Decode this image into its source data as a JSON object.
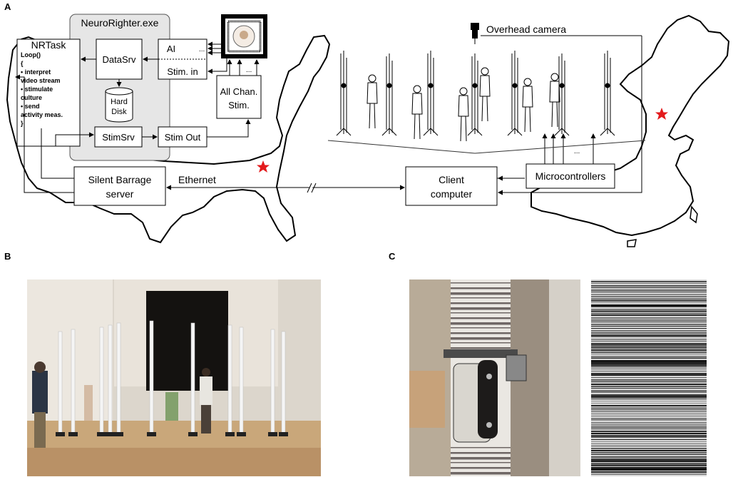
{
  "panels": {
    "a": "A",
    "b": "B",
    "c": "C"
  },
  "app": {
    "title": "NeuroRighter.exe",
    "nrtask_title": "NRTask",
    "nrtask_code": [
      "Loop()",
      "{",
      " • interpret",
      "video stream",
      " • stimulate",
      "culture",
      " • send",
      "activity meas.",
      "}"
    ],
    "datasrv": "DataSrv",
    "hard_disk": [
      "Hard",
      "Disk"
    ],
    "stimsrv": "StimSrv",
    "stim_out": "Stim Out",
    "ai": "AI",
    "stim_in": "Stim. in",
    "all_chan": [
      "All Chan.",
      "Stim."
    ]
  },
  "network": {
    "server": [
      "Silent Barrage",
      "server"
    ],
    "ethernet": "Ethernet",
    "client": [
      "Client",
      "computer"
    ],
    "micro": "Microcontrollers",
    "camera": "Overhead camera",
    "ellipsis": "..."
  },
  "colors": {
    "app_box": "#e6e6e6",
    "star": "#e31a1c",
    "map_stroke": "#000000",
    "photo_b_wall": "#dcd6cc",
    "photo_b_floor": "#c9a77a",
    "photo_c_bg": "#9a8e80",
    "trace_bg": "#d8d8d8"
  }
}
